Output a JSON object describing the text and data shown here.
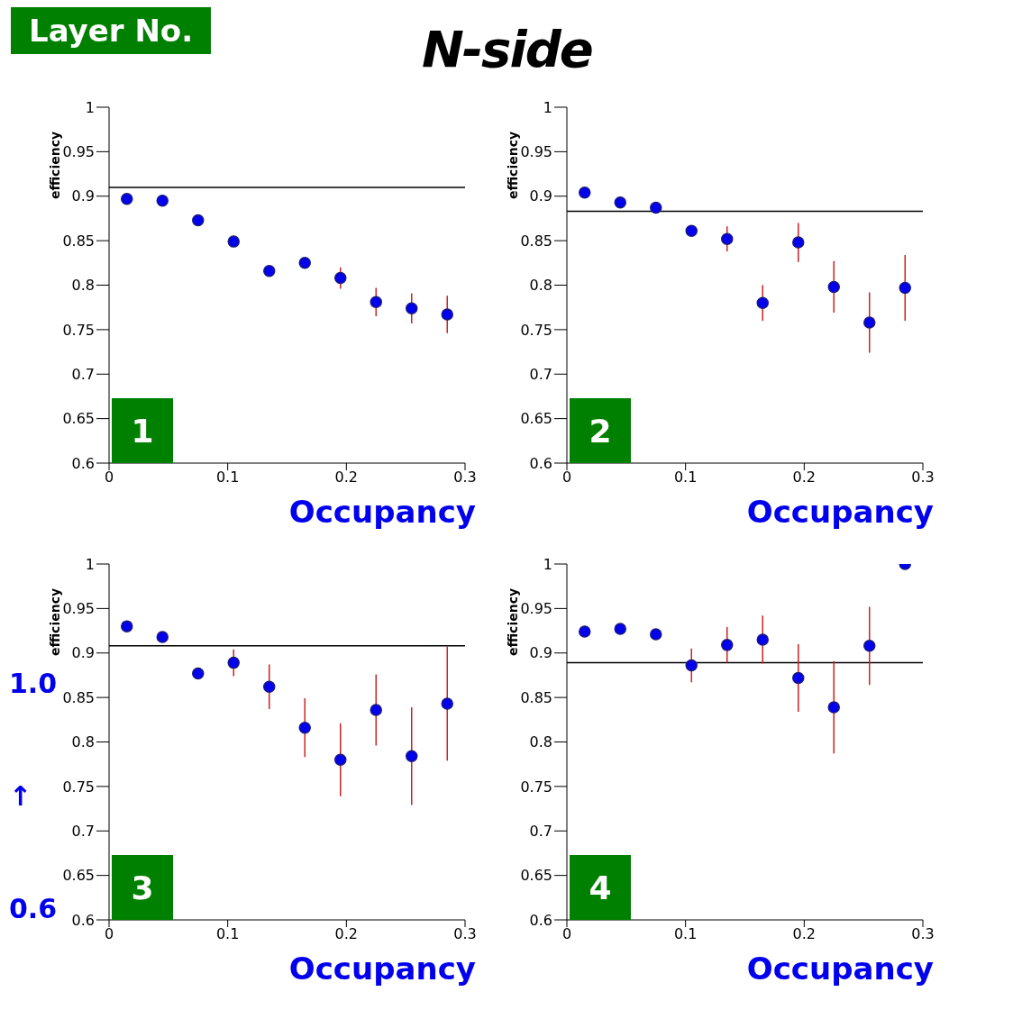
{
  "chart_data": [
    {
      "type": "scatter",
      "title": "N-side",
      "xlabel": "Occupancy",
      "ylabel": "efficiency",
      "annotations": [
        "1",
        "Layer No."
      ],
      "x": [
        0.015,
        0.045,
        0.075,
        0.105,
        0.135,
        0.165,
        0.195,
        0.225,
        0.255,
        0.285
      ],
      "series": [
        {
          "color": "#0000ee",
          "values": [
            0.897,
            0.895,
            0.873,
            0.849,
            0.816,
            0.825,
            0.808,
            0.781,
            0.774,
            0.767
          ],
          "errors": [
            null,
            null,
            null,
            null,
            null,
            null,
            0.012,
            0.016,
            0.017,
            0.021
          ]
        }
      ],
      "ref_lines": [
        {
          "axis": "y",
          "value": 0.91,
          "color": "#000000"
        }
      ],
      "xlim": [
        0,
        0.3
      ],
      "xticks": [
        0,
        0.1,
        0.2,
        0.3
      ],
      "ylim": [
        0.6,
        1
      ],
      "yticks": [
        0.6,
        0.65,
        0.7,
        0.75,
        0.8,
        0.85,
        0.9,
        0.95,
        1
      ],
      "marker": "circle",
      "grid": false,
      "legend": false
    },
    {
      "type": "scatter",
      "xlabel": "Occupancy",
      "ylabel": "efficiency",
      "annotations": [
        "2"
      ],
      "x": [
        0.015,
        0.045,
        0.075,
        0.105,
        0.135,
        0.165,
        0.195,
        0.225,
        0.255,
        0.285
      ],
      "series": [
        {
          "color": "#0000ee",
          "values": [
            0.904,
            0.893,
            0.887,
            0.861,
            0.852,
            0.78,
            0.848,
            0.798,
            0.758,
            0.797
          ],
          "errors": [
            null,
            null,
            null,
            null,
            0.014,
            0.02,
            0.022,
            0.029,
            0.034,
            0.037
          ]
        }
      ],
      "ref_lines": [
        {
          "axis": "y",
          "value": 0.883,
          "color": "#000000"
        }
      ],
      "xlim": [
        0,
        0.3
      ],
      "xticks": [
        0,
        0.1,
        0.2,
        0.3
      ],
      "ylim": [
        0.6,
        1
      ],
      "yticks": [
        0.6,
        0.65,
        0.7,
        0.75,
        0.8,
        0.85,
        0.9,
        0.95,
        1
      ],
      "marker": "circle",
      "grid": false,
      "legend": false
    },
    {
      "type": "scatter",
      "xlabel": "Occupancy",
      "ylabel": "efficiency",
      "annotations": [
        "3",
        "1.0",
        "↑",
        "0.6"
      ],
      "x": [
        0.015,
        0.045,
        0.075,
        0.105,
        0.135,
        0.165,
        0.195,
        0.225,
        0.255,
        0.285
      ],
      "series": [
        {
          "color": "#0000ee",
          "values": [
            0.93,
            0.918,
            0.877,
            0.889,
            0.862,
            0.816,
            0.78,
            0.836,
            0.784,
            0.843
          ],
          "errors": [
            null,
            null,
            null,
            0.015,
            0.025,
            0.033,
            0.041,
            0.04,
            0.055,
            0.064
          ]
        }
      ],
      "ref_lines": [
        {
          "axis": "y",
          "value": 0.908,
          "color": "#000000"
        }
      ],
      "xlim": [
        0,
        0.3
      ],
      "xticks": [
        0,
        0.1,
        0.2,
        0.3
      ],
      "ylim": [
        0.6,
        1
      ],
      "yticks": [
        0.6,
        0.65,
        0.7,
        0.75,
        0.8,
        0.85,
        0.9,
        0.95,
        1
      ],
      "marker": "circle",
      "grid": false,
      "legend": false
    },
    {
      "type": "scatter",
      "xlabel": "Occupancy",
      "ylabel": "efficiency",
      "annotations": [
        "4"
      ],
      "x": [
        0.015,
        0.045,
        0.075,
        0.105,
        0.135,
        0.165,
        0.195,
        0.225,
        0.255,
        0.285
      ],
      "series": [
        {
          "color": "#0000ee",
          "values": [
            0.924,
            0.927,
            0.921,
            0.886,
            0.909,
            0.915,
            0.872,
            0.839,
            0.908,
            1.0
          ],
          "errors": [
            null,
            null,
            null,
            0.019,
            0.02,
            0.027,
            0.038,
            0.052,
            0.044,
            null
          ]
        }
      ],
      "ref_lines": [
        {
          "axis": "y",
          "value": 0.889,
          "color": "#000000"
        }
      ],
      "xlim": [
        0,
        0.3
      ],
      "xticks": [
        0,
        0.1,
        0.2,
        0.3
      ],
      "ylim": [
        0.6,
        1
      ],
      "yticks": [
        0.6,
        0.65,
        0.7,
        0.75,
        0.8,
        0.85,
        0.9,
        0.95,
        1
      ],
      "marker": "circle",
      "grid": false,
      "legend": false
    }
  ]
}
